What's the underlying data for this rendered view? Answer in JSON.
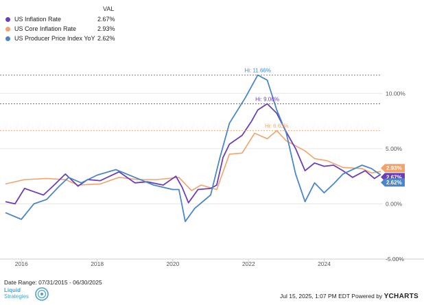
{
  "legend": {
    "header": "VAL",
    "items": [
      {
        "name": "US Inflation Rate",
        "value": "2.67%",
        "color": "#6a3dbd"
      },
      {
        "name": "US Core Inflation Rate",
        "value": "2.93%",
        "color": "#f4a26b"
      },
      {
        "name": "US Producer Price Index YoY",
        "value": "2.62%",
        "color": "#4a86c8"
      }
    ]
  },
  "footer": {
    "date_range": "Date Range: 07/31/2015 - 06/30/2025",
    "timestamp": "Jul 15, 2025, 1:07 PM EDT Powered by",
    "brand": "YCHARTS",
    "logo_text_1": "Liquid",
    "logo_text_2": "Strategies"
  },
  "chart_data": {
    "type": "line",
    "x_range": [
      "2015-07-31",
      "2025-06-30"
    ],
    "ylim": [
      -5,
      12.5
    ],
    "y_ticks": [
      {
        "value": -5,
        "label": "-5.00%"
      },
      {
        "value": 0,
        "label": "0.00%"
      },
      {
        "value": 5,
        "label": "5.00%"
      },
      {
        "value": 10,
        "label": "10.00%"
      }
    ],
    "x_ticks": [
      {
        "date": "2016-01-01",
        "label": "2016"
      },
      {
        "date": "2018-01-01",
        "label": "2018"
      },
      {
        "date": "2020-01-01",
        "label": "2020"
      },
      {
        "date": "2022-01-01",
        "label": "2022"
      },
      {
        "date": "2024-01-01",
        "label": "2024"
      }
    ],
    "grid": "horizontal",
    "series": [
      {
        "name": "US Inflation Rate",
        "color": "#6a3dbd",
        "last_label": "2.67%",
        "high": {
          "value": 9.06,
          "label": "Hi: 9.06%"
        },
        "points": [
          [
            "2015-07-31",
            0.2
          ],
          [
            "2015-10-31",
            0.0
          ],
          [
            "2016-01-31",
            1.4
          ],
          [
            "2016-04-30",
            1.1
          ],
          [
            "2016-07-31",
            0.8
          ],
          [
            "2016-10-31",
            1.6
          ],
          [
            "2017-02-28",
            2.7
          ],
          [
            "2017-06-30",
            1.6
          ],
          [
            "2017-09-30",
            2.2
          ],
          [
            "2018-01-31",
            2.1
          ],
          [
            "2018-07-31",
            2.9
          ],
          [
            "2018-12-31",
            1.9
          ],
          [
            "2019-04-30",
            2.0
          ],
          [
            "2019-09-30",
            1.7
          ],
          [
            "2020-01-31",
            2.5
          ],
          [
            "2020-03-31",
            1.5
          ],
          [
            "2020-05-31",
            0.1
          ],
          [
            "2020-08-31",
            1.3
          ],
          [
            "2020-12-31",
            1.4
          ],
          [
            "2021-02-28",
            1.7
          ],
          [
            "2021-04-30",
            4.2
          ],
          [
            "2021-06-30",
            5.4
          ],
          [
            "2021-10-31",
            6.2
          ],
          [
            "2022-01-31",
            7.5
          ],
          [
            "2022-03-31",
            8.5
          ],
          [
            "2022-06-30",
            9.06
          ],
          [
            "2022-09-30",
            8.2
          ],
          [
            "2022-12-31",
            6.5
          ],
          [
            "2023-03-31",
            5.0
          ],
          [
            "2023-06-30",
            3.0
          ],
          [
            "2023-09-30",
            3.7
          ],
          [
            "2023-12-31",
            3.4
          ],
          [
            "2024-03-31",
            3.5
          ],
          [
            "2024-06-30",
            3.0
          ],
          [
            "2024-09-30",
            2.4
          ],
          [
            "2025-01-31",
            3.0
          ],
          [
            "2025-04-30",
            2.3
          ],
          [
            "2025-06-30",
            2.67
          ]
        ]
      },
      {
        "name": "US Core Inflation Rate",
        "color": "#f4a26b",
        "last_label": "2.93%",
        "high": {
          "value": 6.63,
          "label": "Hi: 6.63%"
        },
        "points": [
          [
            "2015-07-31",
            1.8
          ],
          [
            "2016-01-31",
            2.2
          ],
          [
            "2016-08-31",
            2.3
          ],
          [
            "2017-02-28",
            2.2
          ],
          [
            "2017-06-30",
            1.7
          ],
          [
            "2018-01-31",
            1.8
          ],
          [
            "2018-07-31",
            2.4
          ],
          [
            "2019-01-31",
            2.2
          ],
          [
            "2019-07-31",
            2.2
          ],
          [
            "2020-02-29",
            2.4
          ],
          [
            "2020-06-30",
            1.2
          ],
          [
            "2020-09-30",
            1.7
          ],
          [
            "2021-02-28",
            1.3
          ],
          [
            "2021-06-30",
            4.5
          ],
          [
            "2021-10-31",
            4.6
          ],
          [
            "2022-02-28",
            6.4
          ],
          [
            "2022-06-30",
            5.9
          ],
          [
            "2022-09-30",
            6.63
          ],
          [
            "2022-12-31",
            5.7
          ],
          [
            "2023-06-30",
            4.8
          ],
          [
            "2023-09-30",
            4.1
          ],
          [
            "2024-01-31",
            3.9
          ],
          [
            "2024-06-30",
            3.3
          ],
          [
            "2024-12-31",
            3.2
          ],
          [
            "2025-03-31",
            2.8
          ],
          [
            "2025-06-30",
            2.93
          ]
        ]
      },
      {
        "name": "US Producer Price Index YoY",
        "color": "#4a86c8",
        "last_label": "2.62%",
        "high": {
          "value": 11.66,
          "label": "Hi: 11.66%"
        },
        "points": [
          [
            "2015-07-31",
            -0.8
          ],
          [
            "2015-12-31",
            -1.4
          ],
          [
            "2016-04-30",
            0.0
          ],
          [
            "2016-08-31",
            0.4
          ],
          [
            "2016-12-31",
            1.6
          ],
          [
            "2017-03-31",
            2.4
          ],
          [
            "2017-07-31",
            1.9
          ],
          [
            "2017-12-31",
            2.6
          ],
          [
            "2018-06-30",
            3.1
          ],
          [
            "2018-12-31",
            2.4
          ],
          [
            "2019-06-30",
            1.7
          ],
          [
            "2019-12-31",
            1.3
          ],
          [
            "2020-02-29",
            1.3
          ],
          [
            "2020-04-30",
            -1.6
          ],
          [
            "2020-07-31",
            -0.4
          ],
          [
            "2020-12-31",
            0.8
          ],
          [
            "2021-03-31",
            4.2
          ],
          [
            "2021-06-30",
            7.3
          ],
          [
            "2021-11-30",
            9.6
          ],
          [
            "2022-03-31",
            11.66
          ],
          [
            "2022-06-30",
            11.2
          ],
          [
            "2022-09-30",
            8.5
          ],
          [
            "2022-12-31",
            6.4
          ],
          [
            "2023-03-31",
            2.7
          ],
          [
            "2023-06-30",
            0.2
          ],
          [
            "2023-09-30",
            1.9
          ],
          [
            "2023-12-31",
            1.0
          ],
          [
            "2024-03-31",
            1.8
          ],
          [
            "2024-06-30",
            2.7
          ],
          [
            "2024-12-31",
            3.5
          ],
          [
            "2025-03-31",
            3.2
          ],
          [
            "2025-06-30",
            2.62
          ]
        ]
      }
    ]
  }
}
